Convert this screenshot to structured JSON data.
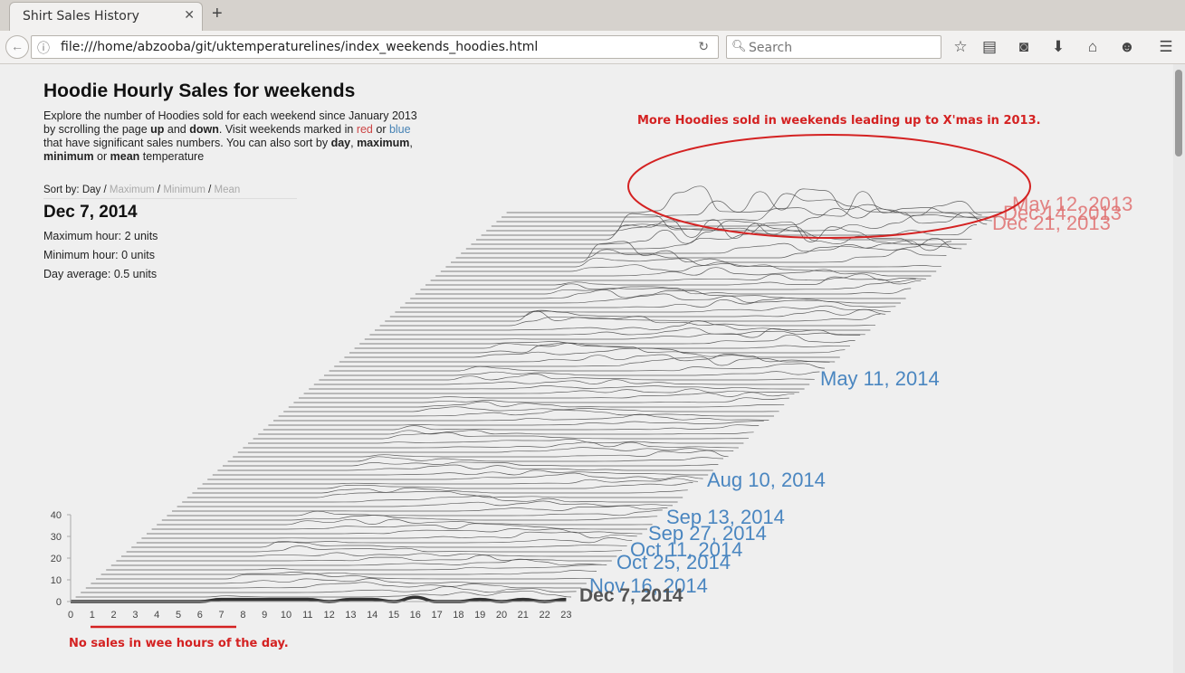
{
  "browser": {
    "tab_title": "Shirt Sales History",
    "url": "file:///home/abzooba/git/uktemperaturelines/index_weekends_hoodies.html",
    "search_placeholder": "Search"
  },
  "page": {
    "title": "Hoodie Hourly Sales for weekends",
    "intro": {
      "p1": "Explore the number of Hoodies sold for each weekend since January 2013 by scrolling the page ",
      "up": "up",
      "p2": " and ",
      "down": "down",
      "p3": ". Visit weekends marked in ",
      "red": "red",
      "p4": " or ",
      "blue": "blue",
      "p5": " that have significant sales numbers. You can also sort by ",
      "day": "day",
      "p6": ", ",
      "maximum": "maximum",
      "p7": ", ",
      "minimum": "minimum",
      "p8": " or ",
      "mean": "mean",
      "p9": " temperature"
    },
    "sort": {
      "label": "Sort by: ",
      "day": "Day",
      "sep": " / ",
      "maximum": "Maximum",
      "minimum": "Minimum",
      "mean": "Mean"
    },
    "selected": {
      "date": "Dec 7, 2014",
      "max": "Maximum hour: 2 units",
      "min": "Minimum hour: 0 units",
      "avg": "Day average: 0.5 units"
    }
  },
  "annotations": {
    "top": "More Hoodies sold in weekends leading up to X'mas in 2013.",
    "bottom": "No sales in wee hours of the day."
  },
  "colors": {
    "red_label": "#e07070",
    "blue_label": "#4a86c0",
    "annotation": "#d42222",
    "line": "#444444"
  },
  "chart_data": {
    "type": "line",
    "xticks": [
      "0",
      "1",
      "2",
      "3",
      "4",
      "5",
      "6",
      "7",
      "8",
      "9",
      "10",
      "11",
      "12",
      "13",
      "14",
      "15",
      "16",
      "17",
      "18",
      "19",
      "20",
      "21",
      "22",
      "23"
    ],
    "yticks": [
      "0",
      "10",
      "20",
      "30",
      "40"
    ],
    "ylim": [
      0,
      40
    ],
    "highlighted_series_values": [
      0,
      0,
      0,
      0,
      0,
      0,
      0,
      1,
      1,
      1,
      1,
      1,
      0,
      1,
      1,
      0,
      2,
      0,
      0,
      1,
      0,
      1,
      0,
      1
    ],
    "labels": [
      {
        "text": "May 12, 2013",
        "color": "red"
      },
      {
        "text": "Dec 14, 2013",
        "color": "red"
      },
      {
        "text": "Dec 21, 2013",
        "color": "red"
      },
      {
        "text": "May 11, 2014",
        "color": "blue"
      },
      {
        "text": "Aug 10, 2014",
        "color": "blue"
      },
      {
        "text": "Sep 13, 2014",
        "color": "blue"
      },
      {
        "text": "Sep 27, 2014",
        "color": "blue"
      },
      {
        "text": "Oct 11, 2014",
        "color": "blue"
      },
      {
        "text": "Oct 25, 2014",
        "color": "blue"
      },
      {
        "text": "Nov 16, 2014",
        "color": "blue"
      },
      {
        "text": "Dec 7, 2014",
        "color": "selected"
      }
    ]
  }
}
